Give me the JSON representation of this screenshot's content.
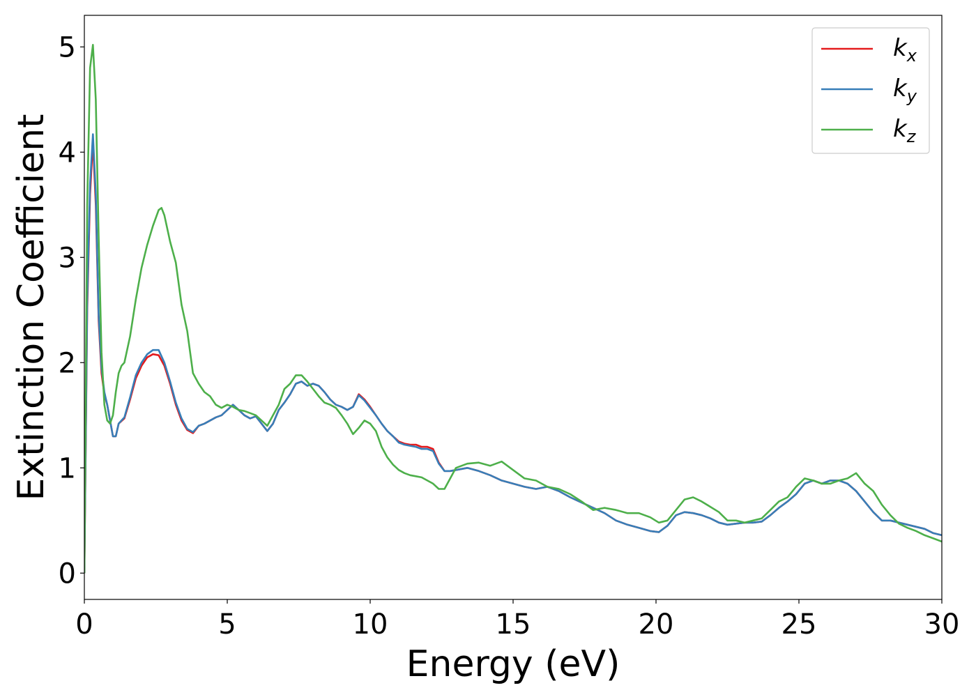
{
  "chart_data": {
    "type": "line",
    "title": "",
    "xlabel": "Energy (eV)",
    "ylabel": "Extinction Coefficient",
    "xlim": [
      0,
      30
    ],
    "ylim": [
      -0.25,
      5.3
    ],
    "xticks": [
      0,
      5,
      10,
      15,
      20,
      25,
      30
    ],
    "xtick_labels": [
      "0",
      "5",
      "10",
      "15",
      "20",
      "25",
      "30"
    ],
    "yticks": [
      0,
      1,
      2,
      3,
      4,
      5
    ],
    "ytick_labels": [
      "0",
      "1",
      "2",
      "3",
      "4",
      "5"
    ],
    "grid": false,
    "legend_position": "top-right",
    "series": [
      {
        "name": "k_x",
        "legend_main": "k",
        "legend_sub": "x",
        "color": "#e41a1c",
        "x": [
          0,
          0.1,
          0.2,
          0.3,
          0.4,
          0.5,
          0.6,
          0.7,
          0.8,
          0.9,
          1.0,
          1.1,
          1.2,
          1.4,
          1.6,
          1.8,
          2.0,
          2.2,
          2.4,
          2.6,
          2.8,
          3.0,
          3.2,
          3.4,
          3.6,
          3.8,
          4.0,
          4.2,
          4.4,
          4.6,
          4.8,
          5.0,
          5.2,
          5.4,
          5.6,
          5.8,
          6.0,
          6.2,
          6.4,
          6.6,
          6.8,
          7.0,
          7.2,
          7.4,
          7.6,
          7.8,
          8.0,
          8.2,
          8.4,
          8.6,
          8.8,
          9.0,
          9.2,
          9.4,
          9.6,
          9.8,
          10.0,
          10.2,
          10.4,
          10.6,
          10.8,
          11.0,
          11.2,
          11.4,
          11.6,
          11.8,
          12.0,
          12.2,
          12.4,
          12.6,
          12.8,
          13.0,
          13.4,
          13.8,
          14.2,
          14.6,
          15.0,
          15.4,
          15.8,
          16.2,
          16.6,
          17.0,
          17.4,
          17.8,
          18.2,
          18.6,
          19.0,
          19.4,
          19.8,
          20.1,
          20.4,
          20.7,
          21.0,
          21.3,
          21.6,
          21.9,
          22.2,
          22.5,
          22.8,
          23.1,
          23.4,
          23.7,
          24.0,
          24.3,
          24.6,
          24.9,
          25.2,
          25.5,
          25.8,
          26.1,
          26.4,
          26.7,
          27.0,
          27.3,
          27.6,
          27.9,
          28.2,
          28.5,
          28.8,
          29.1,
          29.4,
          29.7,
          30.0
        ],
        "y": [
          0.0,
          2.5,
          3.6,
          4.1,
          3.5,
          2.4,
          1.9,
          1.7,
          1.6,
          1.45,
          1.3,
          1.3,
          1.42,
          1.47,
          1.65,
          1.85,
          1.97,
          2.05,
          2.08,
          2.07,
          1.97,
          1.8,
          1.6,
          1.45,
          1.36,
          1.33,
          1.4,
          1.42,
          1.45,
          1.48,
          1.5,
          1.55,
          1.6,
          1.55,
          1.5,
          1.47,
          1.49,
          1.42,
          1.35,
          1.42,
          1.55,
          1.62,
          1.7,
          1.8,
          1.82,
          1.78,
          1.8,
          1.78,
          1.72,
          1.65,
          1.6,
          1.58,
          1.55,
          1.58,
          1.7,
          1.65,
          1.58,
          1.5,
          1.42,
          1.35,
          1.3,
          1.25,
          1.23,
          1.22,
          1.22,
          1.2,
          1.2,
          1.18,
          1.05,
          0.97,
          0.97,
          0.98,
          1.0,
          0.97,
          0.93,
          0.88,
          0.85,
          0.82,
          0.8,
          0.82,
          0.78,
          0.72,
          0.67,
          0.62,
          0.57,
          0.5,
          0.46,
          0.43,
          0.4,
          0.39,
          0.45,
          0.55,
          0.58,
          0.57,
          0.55,
          0.52,
          0.48,
          0.46,
          0.47,
          0.48,
          0.48,
          0.49,
          0.55,
          0.62,
          0.68,
          0.75,
          0.85,
          0.88,
          0.85,
          0.88,
          0.88,
          0.85,
          0.78,
          0.68,
          0.58,
          0.5,
          0.5,
          0.48,
          0.46,
          0.44,
          0.42,
          0.38,
          0.36
        ]
      },
      {
        "name": "k_y",
        "legend_main": "k",
        "legend_sub": "y",
        "color": "#377eb8",
        "x": [
          0,
          0.1,
          0.2,
          0.3,
          0.4,
          0.5,
          0.6,
          0.7,
          0.8,
          0.9,
          1.0,
          1.1,
          1.2,
          1.4,
          1.6,
          1.8,
          2.0,
          2.2,
          2.4,
          2.6,
          2.8,
          3.0,
          3.2,
          3.4,
          3.6,
          3.8,
          4.0,
          4.2,
          4.4,
          4.6,
          4.8,
          5.0,
          5.2,
          5.4,
          5.6,
          5.8,
          6.0,
          6.2,
          6.4,
          6.6,
          6.8,
          7.0,
          7.2,
          7.4,
          7.6,
          7.8,
          8.0,
          8.2,
          8.4,
          8.6,
          8.8,
          9.0,
          9.2,
          9.4,
          9.6,
          9.8,
          10.0,
          10.2,
          10.4,
          10.6,
          10.8,
          11.0,
          11.2,
          11.4,
          11.6,
          11.8,
          12.0,
          12.2,
          12.4,
          12.6,
          12.8,
          13.0,
          13.4,
          13.8,
          14.2,
          14.6,
          15.0,
          15.4,
          15.8,
          16.2,
          16.6,
          17.0,
          17.4,
          17.8,
          18.2,
          18.6,
          19.0,
          19.4,
          19.8,
          20.1,
          20.4,
          20.7,
          21.0,
          21.3,
          21.6,
          21.9,
          22.2,
          22.5,
          22.8,
          23.1,
          23.4,
          23.7,
          24.0,
          24.3,
          24.6,
          24.9,
          25.2,
          25.5,
          25.8,
          26.1,
          26.4,
          26.7,
          27.0,
          27.3,
          27.6,
          27.9,
          28.2,
          28.5,
          28.8,
          29.1,
          29.4,
          29.7,
          30.0
        ],
        "y": [
          0.0,
          2.6,
          3.7,
          4.17,
          3.6,
          2.45,
          1.95,
          1.72,
          1.6,
          1.45,
          1.3,
          1.3,
          1.42,
          1.48,
          1.67,
          1.88,
          2.0,
          2.08,
          2.12,
          2.12,
          2.0,
          1.82,
          1.62,
          1.47,
          1.37,
          1.34,
          1.4,
          1.42,
          1.45,
          1.48,
          1.5,
          1.55,
          1.6,
          1.55,
          1.5,
          1.47,
          1.49,
          1.42,
          1.35,
          1.42,
          1.55,
          1.62,
          1.7,
          1.8,
          1.82,
          1.78,
          1.8,
          1.78,
          1.72,
          1.65,
          1.6,
          1.58,
          1.55,
          1.58,
          1.69,
          1.64,
          1.57,
          1.5,
          1.42,
          1.35,
          1.3,
          1.24,
          1.22,
          1.21,
          1.2,
          1.18,
          1.18,
          1.16,
          1.04,
          0.97,
          0.97,
          0.98,
          1.0,
          0.97,
          0.93,
          0.88,
          0.85,
          0.82,
          0.8,
          0.82,
          0.78,
          0.72,
          0.67,
          0.62,
          0.57,
          0.5,
          0.46,
          0.43,
          0.4,
          0.39,
          0.45,
          0.55,
          0.58,
          0.57,
          0.55,
          0.52,
          0.48,
          0.46,
          0.47,
          0.48,
          0.48,
          0.49,
          0.55,
          0.62,
          0.68,
          0.75,
          0.85,
          0.88,
          0.85,
          0.88,
          0.88,
          0.85,
          0.78,
          0.68,
          0.58,
          0.5,
          0.5,
          0.48,
          0.46,
          0.44,
          0.42,
          0.38,
          0.36
        ]
      },
      {
        "name": "k_z",
        "legend_main": "k",
        "legend_sub": "z",
        "color": "#4daf4a",
        "x": [
          0,
          0.1,
          0.2,
          0.3,
          0.4,
          0.5,
          0.6,
          0.7,
          0.8,
          0.9,
          1.0,
          1.1,
          1.2,
          1.3,
          1.4,
          1.6,
          1.8,
          2.0,
          2.2,
          2.4,
          2.6,
          2.7,
          2.8,
          3.0,
          3.2,
          3.4,
          3.6,
          3.8,
          4.0,
          4.2,
          4.4,
          4.6,
          4.8,
          5.0,
          5.2,
          5.4,
          5.6,
          5.8,
          6.0,
          6.2,
          6.4,
          6.6,
          6.8,
          7.0,
          7.2,
          7.4,
          7.6,
          7.8,
          8.0,
          8.2,
          8.4,
          8.6,
          8.8,
          9.0,
          9.2,
          9.4,
          9.6,
          9.8,
          10.0,
          10.2,
          10.4,
          10.6,
          10.8,
          11.0,
          11.2,
          11.4,
          11.6,
          11.8,
          12.0,
          12.2,
          12.4,
          12.6,
          12.8,
          13.0,
          13.4,
          13.8,
          14.2,
          14.6,
          15.0,
          15.4,
          15.8,
          16.2,
          16.6,
          17.0,
          17.4,
          17.8,
          18.2,
          18.6,
          19.0,
          19.4,
          19.8,
          20.1,
          20.4,
          20.7,
          21.0,
          21.3,
          21.6,
          21.9,
          22.2,
          22.5,
          22.8,
          23.1,
          23.4,
          23.7,
          24.0,
          24.3,
          24.6,
          24.9,
          25.2,
          25.5,
          25.8,
          26.1,
          26.4,
          26.7,
          27.0,
          27.3,
          27.6,
          27.9,
          28.2,
          28.5,
          28.8,
          29.1,
          29.4,
          29.7,
          30.0
        ],
        "y": [
          0.0,
          3.5,
          4.8,
          5.02,
          4.5,
          3.2,
          2.1,
          1.6,
          1.45,
          1.42,
          1.5,
          1.72,
          1.9,
          1.97,
          2.0,
          2.25,
          2.6,
          2.9,
          3.12,
          3.3,
          3.45,
          3.47,
          3.4,
          3.15,
          2.95,
          2.55,
          2.3,
          1.9,
          1.8,
          1.72,
          1.68,
          1.6,
          1.57,
          1.6,
          1.58,
          1.55,
          1.54,
          1.52,
          1.5,
          1.45,
          1.4,
          1.5,
          1.6,
          1.75,
          1.8,
          1.88,
          1.88,
          1.82,
          1.75,
          1.68,
          1.62,
          1.6,
          1.57,
          1.5,
          1.42,
          1.32,
          1.38,
          1.45,
          1.42,
          1.35,
          1.2,
          1.1,
          1.03,
          0.98,
          0.95,
          0.93,
          0.92,
          0.91,
          0.88,
          0.85,
          0.8,
          0.8,
          0.9,
          1.0,
          1.04,
          1.05,
          1.02,
          1.06,
          0.98,
          0.9,
          0.88,
          0.82,
          0.8,
          0.75,
          0.68,
          0.6,
          0.62,
          0.6,
          0.57,
          0.57,
          0.53,
          0.48,
          0.5,
          0.6,
          0.7,
          0.72,
          0.68,
          0.63,
          0.58,
          0.5,
          0.5,
          0.48,
          0.5,
          0.52,
          0.6,
          0.68,
          0.72,
          0.82,
          0.9,
          0.88,
          0.85,
          0.85,
          0.88,
          0.9,
          0.95,
          0.85,
          0.78,
          0.65,
          0.55,
          0.47,
          0.43,
          0.4,
          0.36,
          0.33,
          0.3
        ]
      }
    ]
  }
}
